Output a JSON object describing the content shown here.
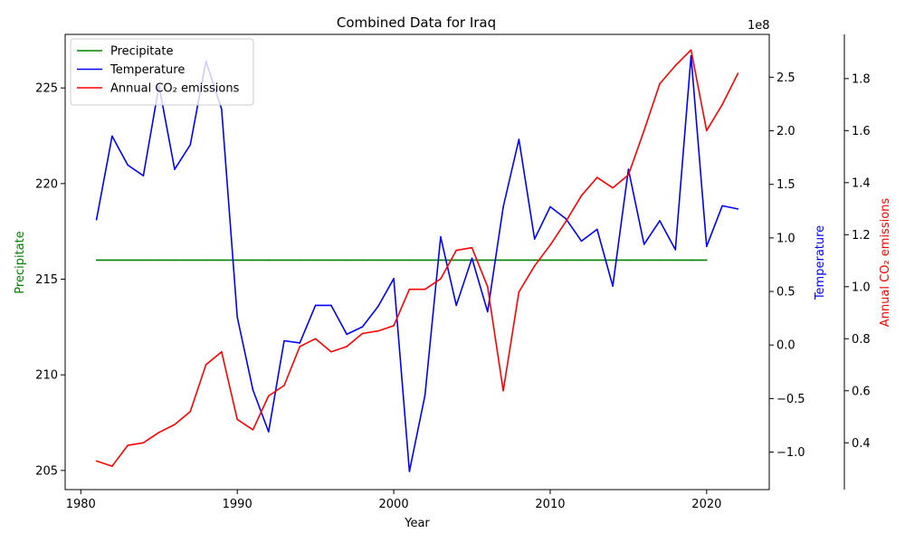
{
  "chart_data": {
    "type": "line",
    "title": "Combined Data for Iraq",
    "xlabel": "Year",
    "x_ticks": [
      1980,
      1990,
      2000,
      2010,
      2020
    ],
    "xlim": [
      1979,
      2024
    ],
    "legend_position": "top-left",
    "grid": false,
    "axes": [
      {
        "id": "precip",
        "label": "Precipitate",
        "color": "#008000",
        "side": "left",
        "ylim": [
          204.0,
          227.8
        ],
        "ticks": [
          205,
          210,
          215,
          220,
          225
        ],
        "tick_labels": [
          "205",
          "210",
          "215",
          "220",
          "225"
        ]
      },
      {
        "id": "temp",
        "label": "Temperature",
        "color": "#0000ff",
        "side": "right",
        "offset_text": "1e8",
        "ylim": [
          -1.35,
          2.9
        ],
        "ticks": [
          -1.0,
          -0.5,
          0.0,
          0.5,
          1.0,
          1.5,
          2.0,
          2.5
        ],
        "tick_labels": [
          "−1.0",
          "−0.5",
          "0.0",
          "0.5",
          "1.0",
          "1.5",
          "2.0",
          "2.5"
        ]
      },
      {
        "id": "co2",
        "label": "Annual CO₂ emissions",
        "color": "#ff0000",
        "side": "right-outer",
        "ylim": [
          0.22,
          1.97
        ],
        "ticks": [
          0.4,
          0.6,
          0.8,
          1.0,
          1.2,
          1.4,
          1.6,
          1.8
        ],
        "tick_labels": [
          "0.4",
          "0.6",
          "0.8",
          "1.0",
          "1.2",
          "1.4",
          "1.6",
          "1.8"
        ]
      }
    ],
    "series": [
      {
        "name": "Precipitate",
        "axis": "precip",
        "color": "#008000",
        "x": [
          1981,
          1982,
          1983,
          1984,
          1985,
          1986,
          1987,
          1988,
          1989,
          1990,
          1991,
          1992,
          1993,
          1994,
          1995,
          1996,
          1997,
          1998,
          1999,
          2000,
          2001,
          2002,
          2003,
          2004,
          2005,
          2006,
          2007,
          2008,
          2009,
          2010,
          2011,
          2012,
          2013,
          2014,
          2015,
          2016,
          2017,
          2018,
          2019,
          2020
        ],
        "values": [
          216,
          216,
          216,
          216,
          216,
          216,
          216,
          216,
          216,
          216,
          216,
          216,
          216,
          216,
          216,
          216,
          216,
          216,
          216,
          216,
          216,
          216,
          216,
          216,
          216,
          216,
          216,
          216,
          216,
          216,
          216,
          216,
          216,
          216,
          216,
          216,
          216,
          216,
          216,
          216
        ]
      },
      {
        "name": "Temperature",
        "axis": "temp",
        "color": "#0000ff",
        "x": [
          1981,
          1982,
          1983,
          1984,
          1985,
          1986,
          1987,
          1988,
          1989,
          1990,
          1991,
          1992,
          1993,
          1994,
          1995,
          1996,
          1997,
          1998,
          1999,
          2000,
          2001,
          2002,
          2003,
          2004,
          2005,
          2006,
          2007,
          2008,
          2009,
          2010,
          2011,
          2012,
          2013,
          2014,
          2015,
          2016,
          2017,
          2018,
          2019,
          2020,
          2021,
          2022
        ],
        "values": [
          1.17,
          1.95,
          1.68,
          1.58,
          2.42,
          1.64,
          1.87,
          2.65,
          2.2,
          0.26,
          -0.42,
          -0.81,
          0.04,
          0.02,
          0.37,
          0.37,
          0.1,
          0.17,
          0.36,
          0.62,
          -1.18,
          -0.47,
          1.01,
          0.37,
          0.81,
          0.31,
          1.29,
          1.92,
          0.99,
          1.29,
          1.18,
          0.97,
          1.08,
          0.55,
          1.64,
          0.94,
          1.16,
          0.89,
          2.7,
          0.92,
          1.3,
          1.27
        ]
      },
      {
        "name": "Annual CO₂ emissions",
        "axis": "co2",
        "color": "#ff0000",
        "x": [
          1981,
          1982,
          1983,
          1984,
          1985,
          1986,
          1987,
          1988,
          1989,
          1990,
          1991,
          1992,
          1993,
          1994,
          1995,
          1996,
          1997,
          1998,
          1999,
          2000,
          2001,
          2002,
          2003,
          2004,
          2005,
          2006,
          2007,
          2008,
          2009,
          2010,
          2011,
          2012,
          2013,
          2014,
          2015,
          2016,
          2017,
          2018,
          2019,
          2020,
          2021,
          2022
        ],
        "values": [
          0.33,
          0.31,
          0.39,
          0.4,
          0.44,
          0.47,
          0.52,
          0.7,
          0.75,
          0.49,
          0.45,
          0.58,
          0.62,
          0.77,
          0.8,
          0.75,
          0.77,
          0.82,
          0.83,
          0.85,
          0.99,
          0.99,
          1.03,
          1.14,
          1.15,
          1.0,
          0.6,
          0.98,
          1.08,
          1.16,
          1.25,
          1.35,
          1.42,
          1.38,
          1.43,
          1.6,
          1.78,
          1.85,
          1.91,
          1.6,
          1.7,
          1.82
        ]
      }
    ]
  }
}
